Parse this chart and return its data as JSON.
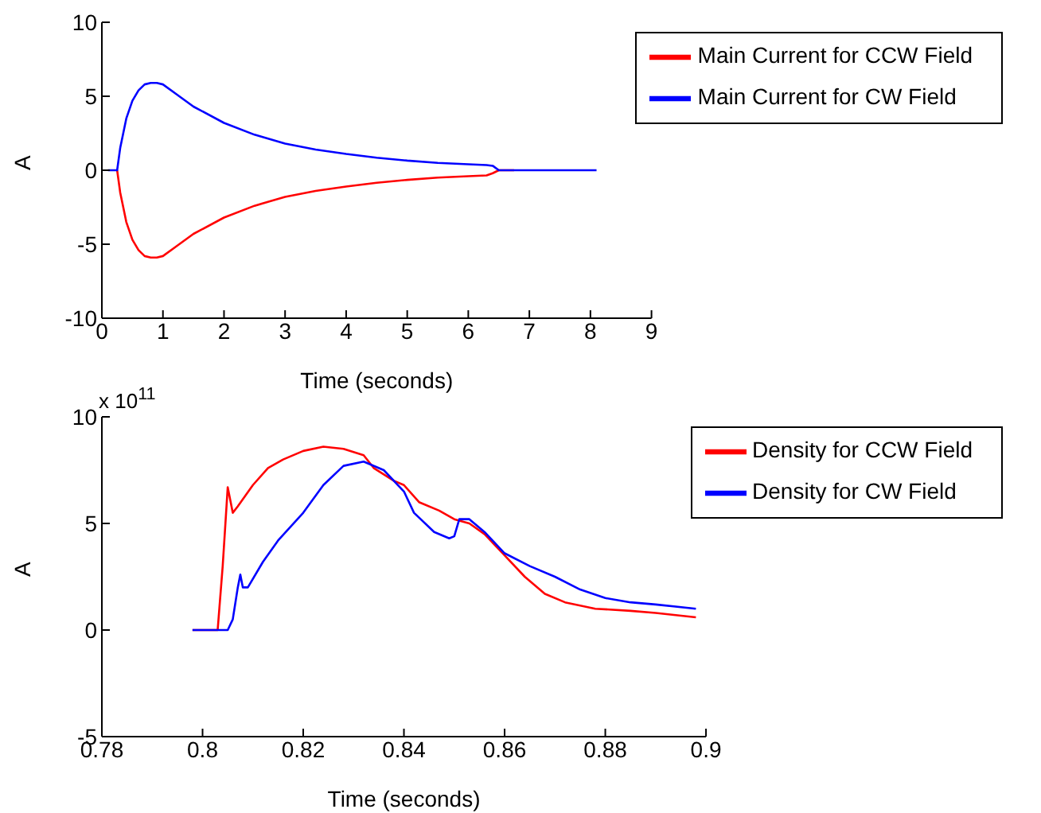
{
  "chart_data": [
    {
      "type": "line",
      "xlabel": "Time (seconds)",
      "ylabel": "A",
      "xlim": [
        0,
        9
      ],
      "xticks": [
        0,
        1,
        2,
        3,
        4,
        5,
        6,
        7,
        8,
        9
      ],
      "ylim": [
        -10,
        10
      ],
      "yticks": [
        -10,
        -5,
        0,
        5,
        10
      ],
      "grid": false,
      "legend": "top right",
      "marker": "none",
      "line_style": "solid",
      "series": [
        {
          "name": "Main Current for CCW Field",
          "color": "#ff0000",
          "x": [
            0.25,
            0.3,
            0.4,
            0.5,
            0.6,
            0.7,
            0.8,
            0.9,
            1.0,
            1.2,
            1.5,
            2,
            2.5,
            3,
            3.5,
            4,
            4.5,
            5,
            5.5,
            6,
            6.3,
            6.4,
            6.5,
            6.75
          ],
          "values": [
            0,
            -1.5,
            -3.5,
            -4.7,
            -5.4,
            -5.8,
            -5.9,
            -5.9,
            -5.8,
            -5.2,
            -4.3,
            -3.2,
            -2.4,
            -1.8,
            -1.4,
            -1.1,
            -0.85,
            -0.65,
            -0.5,
            -0.4,
            -0.35,
            -0.2,
            0,
            0
          ]
        },
        {
          "name": "Main Current for CW Field",
          "color": "#0000ff",
          "x": [
            0.1,
            0.25,
            0.3,
            0.4,
            0.5,
            0.6,
            0.7,
            0.8,
            0.9,
            1.0,
            1.2,
            1.5,
            2,
            2.5,
            3,
            3.5,
            4,
            4.5,
            5,
            5.5,
            6,
            6.3,
            6.4,
            6.5,
            8.1
          ],
          "values": [
            0,
            0,
            1.5,
            3.5,
            4.7,
            5.4,
            5.8,
            5.9,
            5.9,
            5.8,
            5.2,
            4.3,
            3.2,
            2.4,
            1.8,
            1.4,
            1.1,
            0.85,
            0.65,
            0.5,
            0.4,
            0.35,
            0.3,
            0,
            0
          ]
        }
      ]
    },
    {
      "type": "line",
      "xlabel": "Time (seconds)",
      "ylabel": "A",
      "annotations": [
        "x 10$^{11}$"
      ],
      "xlim": [
        0.78,
        0.9
      ],
      "xticks": [
        0.78,
        0.8,
        0.82,
        0.84,
        0.86,
        0.88,
        0.9
      ],
      "ylim": [
        -5,
        10
      ],
      "yticks": [
        -5,
        0,
        5,
        10
      ],
      "grid": false,
      "legend": "top right",
      "marker": "none",
      "line_style": "solid",
      "series": [
        {
          "name": "Density for CCW Field",
          "color": "#ff0000",
          "x": [
            0.798,
            0.803,
            0.804,
            0.805,
            0.806,
            0.807,
            0.81,
            0.813,
            0.816,
            0.82,
            0.824,
            0.828,
            0.832,
            0.834,
            0.838,
            0.84,
            0.843,
            0.847,
            0.85,
            0.853,
            0.856,
            0.86,
            0.864,
            0.868,
            0.872,
            0.878,
            0.885,
            0.89,
            0.898
          ],
          "values": [
            0,
            0,
            3,
            6.7,
            5.5,
            5.8,
            6.8,
            7.6,
            8.0,
            8.4,
            8.6,
            8.5,
            8.2,
            7.6,
            7.0,
            6.8,
            6.0,
            5.6,
            5.2,
            5.0,
            4.5,
            3.5,
            2.5,
            1.7,
            1.3,
            1.0,
            0.9,
            0.8,
            0.6
          ]
        },
        {
          "name": "Density for CW Field",
          "color": "#0000ff",
          "x": [
            0.798,
            0.805,
            0.806,
            0.807,
            0.8075,
            0.808,
            0.809,
            0.812,
            0.815,
            0.82,
            0.824,
            0.828,
            0.832,
            0.836,
            0.84,
            0.842,
            0.846,
            0.849,
            0.85,
            0.851,
            0.853,
            0.856,
            0.86,
            0.865,
            0.87,
            0.875,
            0.88,
            0.885,
            0.89,
            0.898
          ],
          "values": [
            0,
            0,
            0.5,
            2.0,
            2.6,
            2.0,
            2.0,
            3.2,
            4.2,
            5.5,
            6.8,
            7.7,
            7.9,
            7.5,
            6.5,
            5.5,
            4.6,
            4.3,
            4.4,
            5.2,
            5.2,
            4.6,
            3.6,
            3.0,
            2.5,
            1.9,
            1.5,
            1.3,
            1.2,
            1.0
          ]
        }
      ]
    }
  ]
}
